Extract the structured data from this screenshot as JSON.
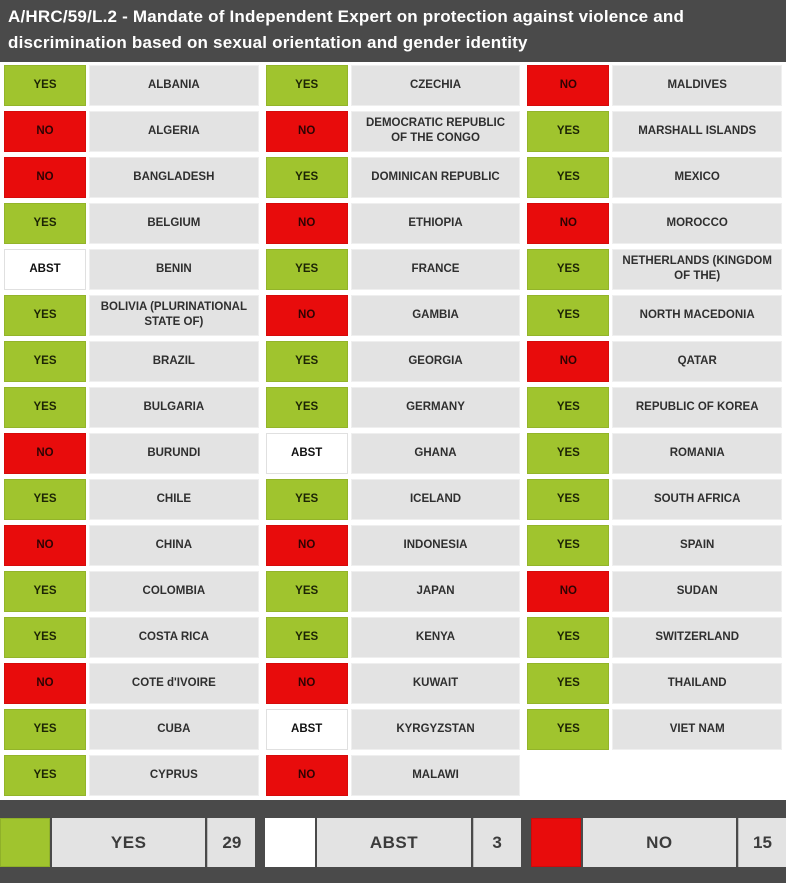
{
  "header": {
    "title": "A/HRC/59/L.2 - Mandate of Independent Expert on protection against violence and discrimination based on sexual orientation and gender identity"
  },
  "colors": {
    "yes_green": "#a0c42e",
    "no_red": "#e80c0c",
    "abst_white": "#ffffff",
    "band_dark_gray": "#4a4a4a",
    "cell_light_gray": "#e3e3e3"
  },
  "votes": {
    "columns": [
      [
        {
          "vote": "YES",
          "country": "ALBANIA"
        },
        {
          "vote": "NO",
          "country": "ALGERIA"
        },
        {
          "vote": "NO",
          "country": "BANGLADESH"
        },
        {
          "vote": "YES",
          "country": "BELGIUM"
        },
        {
          "vote": "ABST",
          "country": "BENIN"
        },
        {
          "vote": "YES",
          "country": "BOLIVIA (PLURINATIONAL STATE OF)"
        },
        {
          "vote": "YES",
          "country": "BRAZIL"
        },
        {
          "vote": "YES",
          "country": "BULGARIA"
        },
        {
          "vote": "NO",
          "country": "BURUNDI"
        },
        {
          "vote": "YES",
          "country": "CHILE"
        },
        {
          "vote": "NO",
          "country": "CHINA"
        },
        {
          "vote": "YES",
          "country": "COLOMBIA"
        },
        {
          "vote": "YES",
          "country": "COSTA RICA"
        },
        {
          "vote": "NO",
          "country": "COTE d'IVOIRE"
        },
        {
          "vote": "YES",
          "country": "CUBA"
        },
        {
          "vote": "YES",
          "country": "CYPRUS"
        }
      ],
      [
        {
          "vote": "YES",
          "country": "CZECHIA"
        },
        {
          "vote": "NO",
          "country": "DEMOCRATIC REPUBLIC OF THE CONGO"
        },
        {
          "vote": "YES",
          "country": "DOMINICAN REPUBLIC"
        },
        {
          "vote": "NO",
          "country": "ETHIOPIA"
        },
        {
          "vote": "YES",
          "country": "FRANCE"
        },
        {
          "vote": "NO",
          "country": "GAMBIA"
        },
        {
          "vote": "YES",
          "country": "GEORGIA"
        },
        {
          "vote": "YES",
          "country": "GERMANY"
        },
        {
          "vote": "ABST",
          "country": "GHANA"
        },
        {
          "vote": "YES",
          "country": "ICELAND"
        },
        {
          "vote": "NO",
          "country": "INDONESIA"
        },
        {
          "vote": "YES",
          "country": "JAPAN"
        },
        {
          "vote": "YES",
          "country": "KENYA"
        },
        {
          "vote": "NO",
          "country": "KUWAIT"
        },
        {
          "vote": "ABST",
          "country": "KYRGYZSTAN"
        },
        {
          "vote": "NO",
          "country": "MALAWI"
        }
      ],
      [
        {
          "vote": "NO",
          "country": "MALDIVES"
        },
        {
          "vote": "YES",
          "country": "MARSHALL ISLANDS"
        },
        {
          "vote": "YES",
          "country": "MEXICO"
        },
        {
          "vote": "NO",
          "country": "MOROCCO"
        },
        {
          "vote": "YES",
          "country": "NETHERLANDS (KINGDOM OF THE)"
        },
        {
          "vote": "YES",
          "country": "NORTH MACEDONIA"
        },
        {
          "vote": "NO",
          "country": "QATAR"
        },
        {
          "vote": "YES",
          "country": "REPUBLIC OF KOREA"
        },
        {
          "vote": "YES",
          "country": "ROMANIA"
        },
        {
          "vote": "YES",
          "country": "SOUTH AFRICA"
        },
        {
          "vote": "YES",
          "country": "SPAIN"
        },
        {
          "vote": "NO",
          "country": "SUDAN"
        },
        {
          "vote": "YES",
          "country": "SWITZERLAND"
        },
        {
          "vote": "YES",
          "country": "THAILAND"
        },
        {
          "vote": "YES",
          "country": "VIET NAM"
        }
      ]
    ]
  },
  "summary": {
    "items": [
      {
        "key": "yes",
        "label": "YES",
        "count": "29"
      },
      {
        "key": "abst",
        "label": "ABST",
        "count": "3"
      },
      {
        "key": "no",
        "label": "NO",
        "count": "15"
      }
    ]
  }
}
